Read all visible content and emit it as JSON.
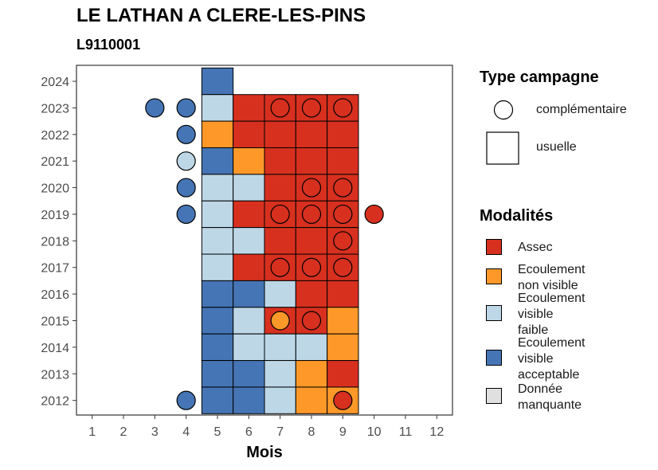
{
  "title": "LE LATHAN A CLERE-LES-PINS",
  "subtitle": "L9110001",
  "colors": {
    "Assec": "#d7301f",
    "Ecoulement non visible": "#fe9929",
    "Ecoulement visible faible": "#bdd7e7",
    "Ecoulement visible acceptable": "#4575b4",
    "Donnée manquante": "#e0e0e0"
  },
  "legend": {
    "type_title": "Type campagne",
    "types": [
      {
        "label": "complémentaire",
        "shape": "circle"
      },
      {
        "label": "usuelle",
        "shape": "square"
      }
    ],
    "modalites_title": "Modalités",
    "modalites": [
      {
        "key": "Assec",
        "label": "Assec"
      },
      {
        "key": "Ecoulement non visible",
        "label": "Ecoulement\nnon visible"
      },
      {
        "key": "Ecoulement visible faible",
        "label": "Ecoulement\nvisible\nfaible"
      },
      {
        "key": "Ecoulement visible acceptable",
        "label": "Ecoulement\nvisible\nacceptable"
      },
      {
        "key": "Donnée manquante",
        "label": "Donnée\nmanquante"
      }
    ]
  },
  "chart_data": {
    "type": "heatmap",
    "title": "LE LATHAN A CLERE-LES-PINS",
    "subtitle": "L9110001",
    "xlabel": "Mois",
    "ylabel": "",
    "x_ticks": [
      1,
      2,
      3,
      4,
      5,
      6,
      7,
      8,
      9,
      10,
      11,
      12
    ],
    "y_ticks": [
      2012,
      2013,
      2014,
      2015,
      2016,
      2017,
      2018,
      2019,
      2020,
      2021,
      2022,
      2023,
      2024
    ],
    "xlim": [
      0.5,
      12.5
    ],
    "ylim": [
      2011.45,
      2024.6
    ],
    "grid": false,
    "legend_position": "right",
    "usuelle": [
      {
        "year": 2024,
        "values": {
          "5": "Ecoulement visible acceptable"
        }
      },
      {
        "year": 2023,
        "values": {
          "5": "Ecoulement visible faible",
          "6": "Assec",
          "7": "Assec",
          "8": "Assec",
          "9": "Assec"
        }
      },
      {
        "year": 2022,
        "values": {
          "5": "Ecoulement non visible",
          "6": "Assec",
          "7": "Assec",
          "8": "Assec",
          "9": "Assec"
        }
      },
      {
        "year": 2021,
        "values": {
          "5": "Ecoulement visible acceptable",
          "6": "Ecoulement non visible",
          "7": "Assec",
          "8": "Assec",
          "9": "Assec"
        }
      },
      {
        "year": 2020,
        "values": {
          "5": "Ecoulement visible faible",
          "6": "Ecoulement visible faible",
          "7": "Assec",
          "8": "Assec",
          "9": "Assec"
        }
      },
      {
        "year": 2019,
        "values": {
          "5": "Ecoulement visible faible",
          "6": "Assec",
          "7": "Assec",
          "8": "Assec",
          "9": "Assec"
        }
      },
      {
        "year": 2018,
        "values": {
          "5": "Ecoulement visible faible",
          "6": "Ecoulement visible faible",
          "7": "Assec",
          "8": "Assec",
          "9": "Assec"
        }
      },
      {
        "year": 2017,
        "values": {
          "5": "Ecoulement visible faible",
          "6": "Assec",
          "7": "Assec",
          "8": "Assec",
          "9": "Assec"
        }
      },
      {
        "year": 2016,
        "values": {
          "5": "Ecoulement visible acceptable",
          "6": "Ecoulement visible acceptable",
          "7": "Ecoulement visible faible",
          "8": "Assec",
          "9": "Assec"
        }
      },
      {
        "year": 2015,
        "values": {
          "5": "Ecoulement visible acceptable",
          "6": "Ecoulement visible faible",
          "7": "Assec",
          "8": "Assec",
          "9": "Ecoulement non visible"
        }
      },
      {
        "year": 2014,
        "values": {
          "5": "Ecoulement visible acceptable",
          "6": "Ecoulement visible faible",
          "7": "Ecoulement visible faible",
          "8": "Ecoulement visible faible",
          "9": "Ecoulement non visible"
        }
      },
      {
        "year": 2013,
        "values": {
          "5": "Ecoulement visible acceptable",
          "6": "Ecoulement visible acceptable",
          "7": "Ecoulement visible faible",
          "8": "Ecoulement non visible",
          "9": "Assec"
        }
      },
      {
        "year": 2012,
        "values": {
          "5": "Ecoulement visible acceptable",
          "6": "Ecoulement visible acceptable",
          "7": "Ecoulement visible faible",
          "8": "Ecoulement non visible",
          "9": "Ecoulement non visible"
        }
      }
    ],
    "complementaire": [
      {
        "year": 2023,
        "month": 3,
        "value": "Ecoulement visible acceptable"
      },
      {
        "year": 2023,
        "month": 4,
        "value": "Ecoulement visible acceptable"
      },
      {
        "year": 2023,
        "month": 7,
        "value": "Assec"
      },
      {
        "year": 2023,
        "month": 8,
        "value": "Assec"
      },
      {
        "year": 2023,
        "month": 9,
        "value": "Assec"
      },
      {
        "year": 2022,
        "month": 4,
        "value": "Ecoulement visible acceptable"
      },
      {
        "year": 2021,
        "month": 4,
        "value": "Ecoulement visible faible"
      },
      {
        "year": 2020,
        "month": 4,
        "value": "Ecoulement visible acceptable"
      },
      {
        "year": 2020,
        "month": 8,
        "value": "Assec"
      },
      {
        "year": 2020,
        "month": 9,
        "value": "Assec"
      },
      {
        "year": 2019,
        "month": 4,
        "value": "Ecoulement visible acceptable"
      },
      {
        "year": 2019,
        "month": 7,
        "value": "Assec"
      },
      {
        "year": 2019,
        "month": 8,
        "value": "Assec"
      },
      {
        "year": 2019,
        "month": 9,
        "value": "Assec"
      },
      {
        "year": 2019,
        "month": 10,
        "value": "Assec"
      },
      {
        "year": 2018,
        "month": 9,
        "value": "Assec"
      },
      {
        "year": 2017,
        "month": 7,
        "value": "Assec"
      },
      {
        "year": 2017,
        "month": 8,
        "value": "Assec"
      },
      {
        "year": 2017,
        "month": 9,
        "value": "Assec"
      },
      {
        "year": 2015,
        "month": 7,
        "value": "Ecoulement non visible"
      },
      {
        "year": 2015,
        "month": 8,
        "value": "Assec"
      },
      {
        "year": 2012,
        "month": 4,
        "value": "Ecoulement visible acceptable"
      },
      {
        "year": 2012,
        "month": 9,
        "value": "Assec"
      }
    ]
  }
}
